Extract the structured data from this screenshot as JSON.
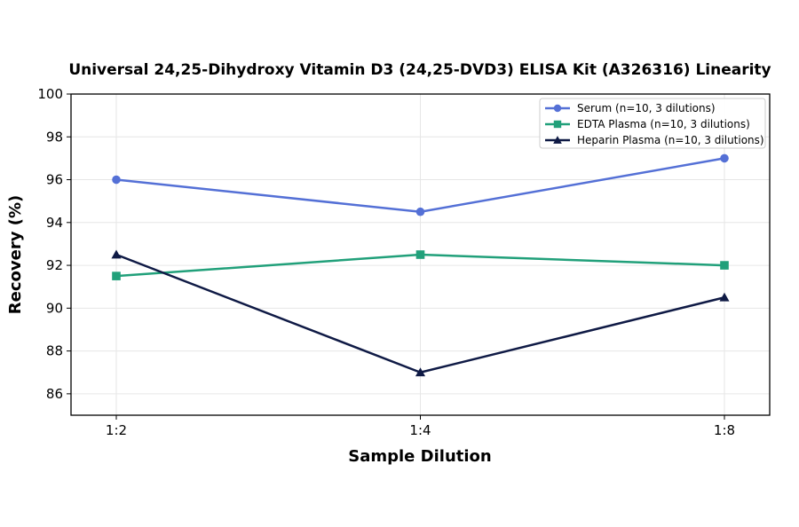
{
  "chart_data": {
    "type": "line",
    "title": "Universal 24,25-Dihydroxy Vitamin D3 (24,25-DVD3) ELISA Kit (A326316) Linearity",
    "xlabel": "Sample Dilution",
    "ylabel": "Recovery (%)",
    "categories": [
      "1:2",
      "1:4",
      "1:8"
    ],
    "ylim": [
      85,
      100
    ],
    "yticks": [
      86,
      88,
      90,
      92,
      94,
      96,
      98,
      100
    ],
    "grid": true,
    "legend_position": "top-right",
    "series": [
      {
        "name": "Serum (n=10, 3 dilutions)",
        "values": [
          96,
          94.5,
          97
        ],
        "color": "#5470d6",
        "marker": "circle"
      },
      {
        "name": "EDTA Plasma (n=10, 3 dilutions)",
        "values": [
          91.5,
          92.5,
          92
        ],
        "color": "#21a07a",
        "marker": "square"
      },
      {
        "name": "Heparin Plasma (n=10, 3 dilutions)",
        "values": [
          92.5,
          87,
          90.5
        ],
        "color": "#0f1a45",
        "marker": "triangle"
      }
    ]
  }
}
